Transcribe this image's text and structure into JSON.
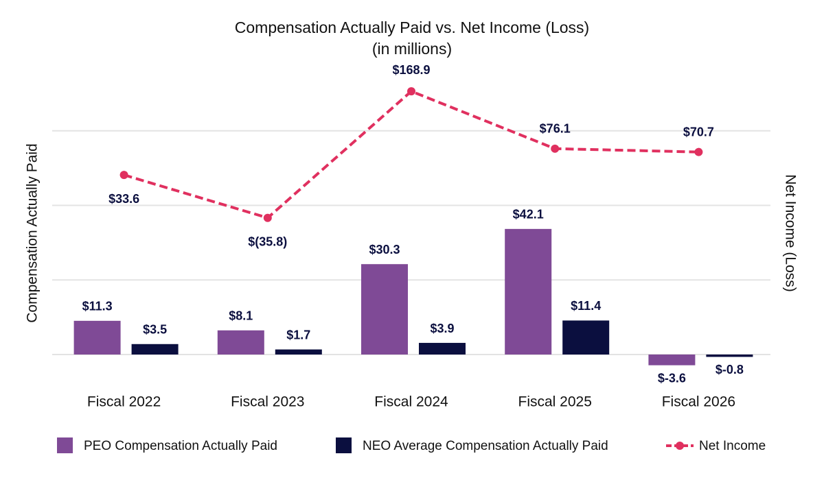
{
  "chart_data": {
    "type": "bar",
    "title": "Compensation Actually Paid vs. Net Income (Loss)",
    "subtitle": "(in millions)",
    "y_label": "Compensation Actually Paid",
    "y2_label": "Net Income (Loss)",
    "categories": [
      "Fiscal 2022",
      "Fiscal 2023",
      "Fiscal 2024",
      "Fiscal 2025",
      "Fiscal 2026"
    ],
    "series": [
      {
        "name": "PEO Compensation Actually Paid",
        "type": "bar",
        "color": "#7f4a96",
        "values": [
          11.3,
          8.1,
          30.3,
          42.1,
          -3.6
        ],
        "value_labels": [
          "$11.3",
          "$8.1",
          "$30.3",
          "$42.1",
          "$-3.6"
        ]
      },
      {
        "name": "NEO Average Compensation Actually Paid",
        "type": "bar",
        "color": "#0b0f3f",
        "values": [
          3.5,
          1.7,
          3.9,
          11.4,
          -0.8
        ],
        "value_labels": [
          "$3.5",
          "$1.7",
          "$3.9",
          "$11.4",
          "$-0.8"
        ]
      },
      {
        "name": "Net Income",
        "type": "line",
        "axis": "y2",
        "color": "#e0305f",
        "line_style": "dashed",
        "markers": true,
        "values": [
          33.6,
          -35.8,
          168.9,
          76.1,
          70.7
        ],
        "value_labels": [
          "$33.6",
          "$(35.8)",
          "$168.9",
          "$76.1",
          "$70.7"
        ]
      }
    ],
    "ylim": [
      -10,
      75
    ],
    "yticks": [
      0,
      25,
      50,
      75
    ],
    "y2lim": [
      -305,
      105
    ],
    "grid": true,
    "legend": "bottom"
  }
}
